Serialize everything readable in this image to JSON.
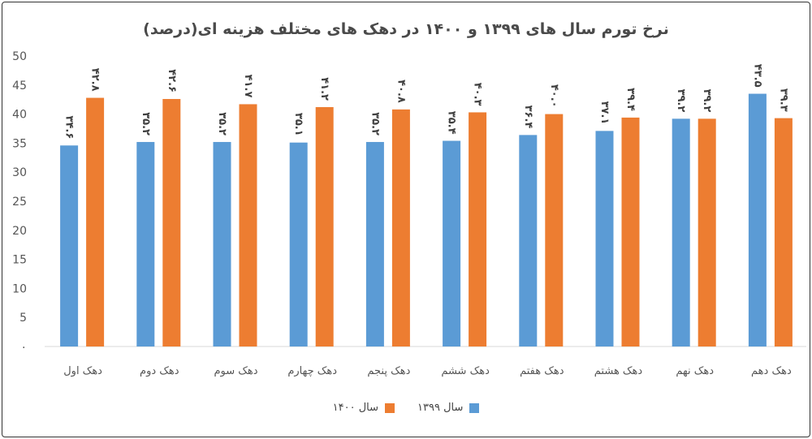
{
  "chart_data": {
    "type": "bar",
    "title": "نرخ تورم سال های ۱۳۹۹ و ۱۴۰۰ در دهک های مختلف هزینه ای(درصد)",
    "categories": [
      "دهک اول",
      "دهک دوم",
      "دهک سوم",
      "دهک چهارم",
      "دهک پنجم",
      "دهک ششم",
      "دهک هفتم",
      "دهک هشتم",
      "دهک نهم",
      "دهک دهم"
    ],
    "series": [
      {
        "name": "سال ۱۳۹۹",
        "color": "#5b9bd5",
        "values": [
          34.6,
          35.2,
          35.2,
          35.1,
          35.2,
          35.4,
          36.4,
          37.1,
          39.2,
          43.5
        ],
        "labels": [
          "۳۴.۶",
          "۳۵.۲",
          "۳۵.۲",
          "۳۵.۱",
          "۳۵.۲",
          "۳۵.۴",
          "۳۶.۴",
          "۳۷.۱",
          "۳۹.۲",
          "۴۳.۵"
        ]
      },
      {
        "name": "سال ۱۴۰۰",
        "color": "#ed7d31",
        "values": [
          42.8,
          42.6,
          41.7,
          41.2,
          40.8,
          40.3,
          40.0,
          39.4,
          39.2,
          39.3
        ],
        "labels": [
          "۴۲.۸",
          "۴۲.۶",
          "۴۱.۷",
          "۴۱.۲",
          "۴۰.۸",
          "۴۰.۳",
          "۴۰.۰",
          "۳۹.۴",
          "۳۹.۲",
          "۳۹.۳"
        ]
      }
    ],
    "ylim": [
      0,
      50
    ],
    "yticks": [
      0,
      5,
      10,
      15,
      20,
      25,
      30,
      35,
      40,
      45,
      50
    ],
    "ytick_labels": [
      "۰",
      "5",
      "10",
      "15",
      "20",
      "25",
      "30",
      "35",
      "40",
      "45",
      "50"
    ],
    "grid": false,
    "legend_position": "bottom",
    "xlabel": "",
    "ylabel": ""
  }
}
